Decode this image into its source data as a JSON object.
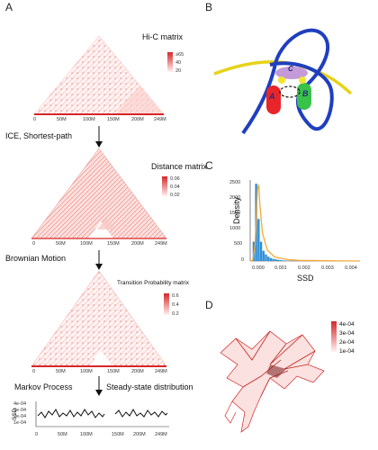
{
  "panels": {
    "a": {
      "letter": "A",
      "hic_title": "Hi-C matrix",
      "hic_scale": [
        "≥65",
        "40",
        "20"
      ],
      "step1_label": "ICE, Shortest-path",
      "dist_title": "Distance matrix",
      "dist_scale": [
        "0.06",
        "0.04",
        "0.02"
      ],
      "step2_label": "Brownian Motion",
      "tp_title": "Transition Probability matrix",
      "tp_scale": [
        "0.6",
        "0.4",
        "0.2"
      ],
      "step3_label": "Markov Process",
      "step3_result": "Steady-state distribution",
      "hic_ticks": [
        "0",
        "50M",
        "100M",
        "150M",
        "200M",
        "249M"
      ],
      "track_ylabel": "SSD",
      "track_yticks": [
        "4e-04",
        "3e-04",
        "2e-04",
        "1e-04"
      ],
      "track_xticks": [
        "0",
        "50M",
        "100M",
        "150M",
        "200M",
        "249M"
      ]
    },
    "b": {
      "letter": "B",
      "domains": [
        "A",
        "B",
        "C"
      ]
    },
    "c": {
      "letter": "C",
      "xlabel": "SSD",
      "ylabel": "Density",
      "yticks": [
        "2500",
        "2000",
        "1500",
        "1000",
        "500",
        "0"
      ],
      "xticks": [
        "0.000",
        "0.001",
        "0.002",
        "0.003",
        "0.004"
      ]
    },
    "d": {
      "letter": "D",
      "legend": [
        "4e-04",
        "3e-04",
        "2e-04",
        "1e-04"
      ]
    }
  },
  "colors": {
    "heat": "#d62728",
    "hist_bar": "#2f8fd8",
    "density_line": "#f2a93b",
    "chrom_blue": "#1f3fbf",
    "chrom_yellow": "#e6d31a",
    "domain_a": "#e8262a",
    "domain_b": "#38c24a",
    "domain_c": "#c49ad8"
  },
  "chart_data": [
    {
      "type": "bar",
      "title": "",
      "xlabel": "SSD",
      "ylabel": "Density",
      "xlim": [
        0,
        0.0045
      ],
      "ylim": [
        0,
        2600
      ],
      "bins_x": [
        0.0001,
        0.0002,
        0.0003,
        0.0004,
        0.0005,
        0.0006,
        0.0007,
        0.0008,
        0.0009,
        0.001,
        0.0011,
        0.0012,
        0.0013,
        0.0014,
        0.0015
      ],
      "values": [
        20,
        620,
        2480,
        1350,
        620,
        330,
        210,
        140,
        95,
        70,
        55,
        40,
        30,
        20,
        15
      ],
      "density_line": {
        "x": [
          0.0,
          0.0001,
          0.0002,
          0.0003,
          0.00035,
          0.0004,
          0.0005,
          0.0007,
          0.001,
          0.0015,
          0.002,
          0.003,
          0.0045
        ],
        "y": [
          0,
          20,
          500,
          2300,
          2450,
          1800,
          900,
          350,
          130,
          45,
          20,
          8,
          0
        ]
      }
    }
  ]
}
